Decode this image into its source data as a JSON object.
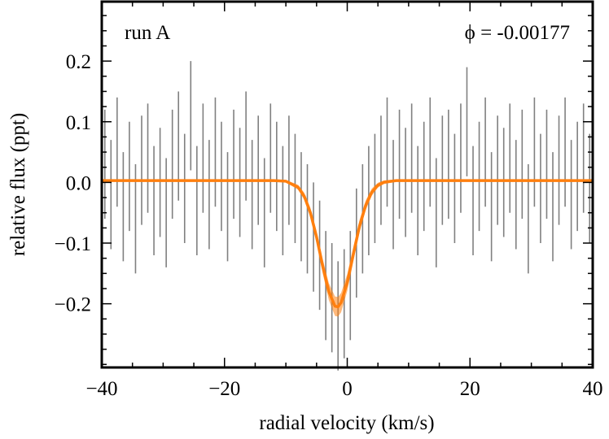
{
  "chart_data": {
    "type": "errorbar",
    "xlabel": "radial velocity (km/s)",
    "ylabel": "relative flux (ppt)",
    "annotations": [
      "run A",
      "ϕ = -0.00177"
    ],
    "xlim": [
      -40,
      40
    ],
    "ylim": [
      -0.305,
      0.298
    ],
    "xticks": [
      {
        "value": -40,
        "label": "−40"
      },
      {
        "value": -20,
        "label": "−20"
      },
      0,
      20,
      40
    ],
    "yticks": [
      {
        "value": -0.2,
        "label": "−0.2"
      },
      {
        "value": -0.1,
        "label": "−0.1"
      },
      {
        "value": 0,
        "label": "0.0"
      },
      {
        "value": 0.1,
        "label": "0.1"
      },
      {
        "value": 0.2,
        "label": "0.2"
      }
    ],
    "xminorticks": [
      -35,
      -30,
      -25,
      -15,
      -10,
      -5,
      5,
      10,
      15,
      25,
      30,
      35
    ],
    "yminorticks": [
      -0.3,
      -0.275,
      -0.25,
      -0.225,
      -0.175,
      -0.15,
      -0.125,
      -0.075,
      -0.05,
      -0.025,
      0.025,
      0.05,
      0.075,
      0.125,
      0.15,
      0.175,
      0.225,
      0.25,
      0.275
    ],
    "series": [
      {
        "type": "errorbar",
        "color": "#808080",
        "error": 0.09,
        "x": [
          -39.5,
          -38.5,
          -37.5,
          -36.5,
          -35.5,
          -34.5,
          -33.5,
          -32.5,
          -31.5,
          -30.5,
          -29.5,
          -28.5,
          -27.5,
          -26.5,
          -25.5,
          -24.5,
          -23.5,
          -22.5,
          -21.5,
          -20.5,
          -19.5,
          -18.5,
          -17.5,
          -16.5,
          -15.5,
          -14.5,
          -13.5,
          -12.5,
          -11.5,
          -10.5,
          -9.5,
          -8.5,
          -7.5,
          -6.5,
          -5.5,
          -4.5,
          -3.5,
          -2.5,
          -1.5,
          -0.5,
          0.5,
          1.5,
          2.5,
          3.5,
          4.5,
          5.5,
          6.5,
          7.5,
          8.5,
          9.5,
          10.5,
          11.5,
          12.5,
          13.5,
          14.5,
          15.5,
          16.5,
          17.5,
          18.5,
          19.5,
          20.5,
          21.5,
          22.5,
          23.5,
          24.5,
          25.5,
          26.5,
          27.5,
          28.5,
          29.5,
          30.5,
          31.5,
          32.5,
          33.5,
          34.5,
          35.5,
          36.5,
          37.5,
          38.5,
          39.5
        ],
        "values": [
          0.03,
          -0.02,
          0.05,
          -0.04,
          0.01,
          -0.06,
          0.02,
          0.04,
          -0.03,
          0.0,
          -0.05,
          0.03,
          0.06,
          -0.01,
          0.11,
          -0.03,
          0.04,
          -0.02,
          0.05,
          0.01,
          -0.04,
          0.03,
          0.0,
          0.06,
          -0.02,
          0.02,
          -0.05,
          0.04,
          0.01,
          -0.03,
          0.02,
          -0.01,
          -0.04,
          -0.06,
          -0.09,
          -0.12,
          -0.17,
          -0.19,
          -0.22,
          -0.2,
          -0.17,
          -0.1,
          -0.06,
          -0.03,
          -0.01,
          0.02,
          0.05,
          -0.02,
          0.03,
          0.0,
          0.04,
          -0.03,
          0.01,
          0.05,
          -0.05,
          0.02,
          0.03,
          -0.01,
          0.04,
          0.1,
          -0.03,
          0.01,
          0.05,
          -0.04,
          0.02,
          0.0,
          0.04,
          -0.02,
          0.03,
          -0.06,
          0.05,
          -0.01,
          0.03,
          -0.04,
          0.02,
          0.05,
          -0.02,
          0.01,
          0.04,
          -0.01
        ]
      },
      {
        "type": "line",
        "color": "#ff7f0e",
        "x": [
          -40,
          -12,
          -10,
          -8,
          -7,
          -6,
          -5,
          -4,
          -3,
          -2,
          -1.5,
          -1,
          0,
          1,
          2,
          3,
          4,
          5,
          6,
          8,
          10,
          40
        ],
        "values": [
          0.003,
          0.003,
          0.002,
          -0.008,
          -0.023,
          -0.05,
          -0.09,
          -0.138,
          -0.18,
          -0.204,
          -0.205,
          -0.198,
          -0.165,
          -0.118,
          -0.072,
          -0.038,
          -0.016,
          -0.0045,
          0.0004,
          0.003,
          0.003,
          0.003
        ],
        "band": [
          0.002,
          0.002,
          0.002,
          0.004,
          0.006,
          0.008,
          0.01,
          0.012,
          0.014,
          0.016,
          0.016,
          0.016,
          0.014,
          0.012,
          0.01,
          0.008,
          0.006,
          0.004,
          0.003,
          0.002,
          0.002,
          0.002
        ]
      }
    ]
  }
}
